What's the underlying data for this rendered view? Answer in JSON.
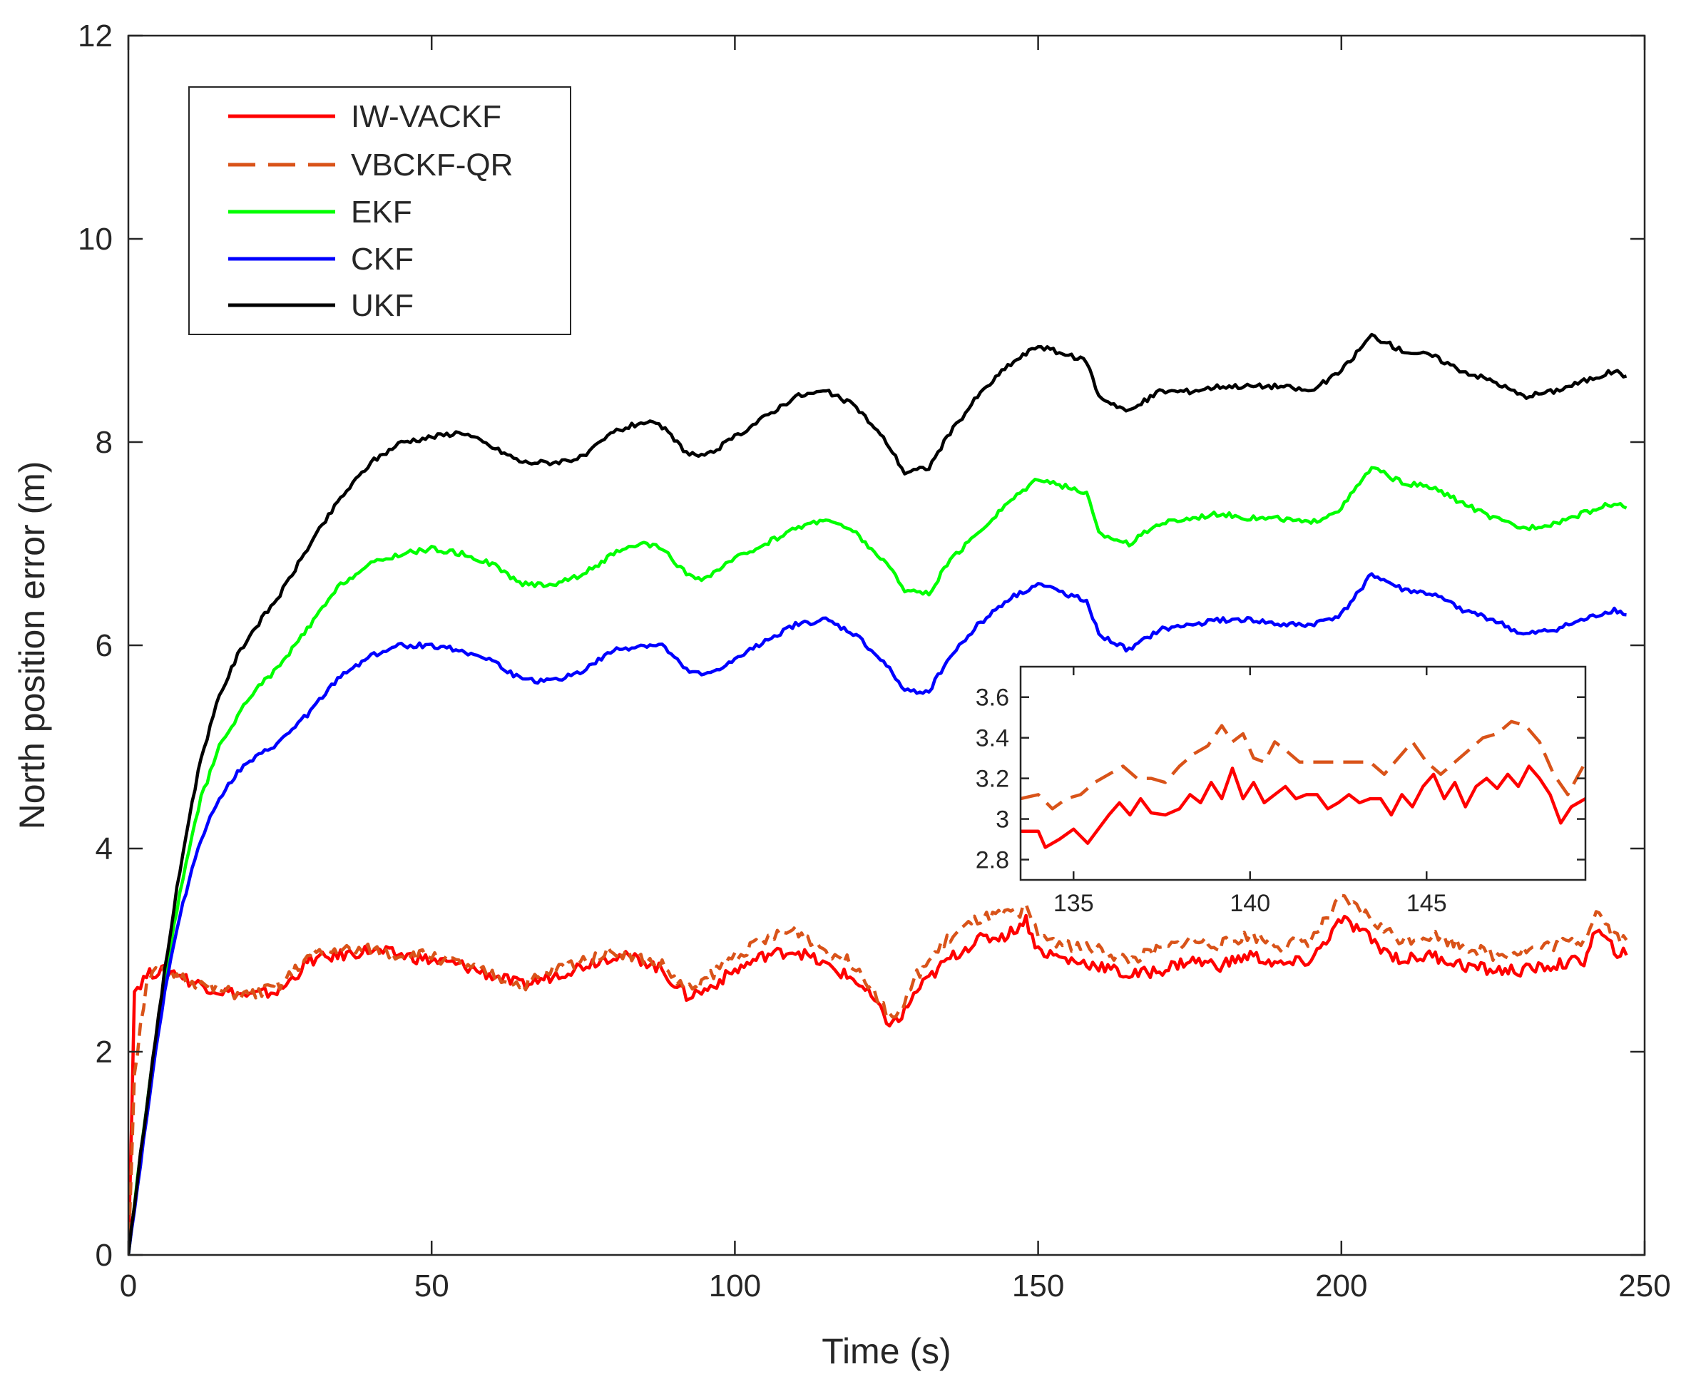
{
  "chart_data": [
    {
      "type": "line",
      "role": "main",
      "title": "",
      "xlabel": "Time (s)",
      "ylabel": "North position error (m)",
      "xlim": [
        0,
        250
      ],
      "ylim": [
        0,
        12
      ],
      "xticks": [
        0,
        50,
        100,
        150,
        200,
        250
      ],
      "yticks": [
        0,
        2,
        4,
        6,
        8,
        10,
        12
      ],
      "xtick_labels": [
        "0",
        "50",
        "100",
        "150",
        "200",
        "250"
      ],
      "ytick_labels": [
        "0",
        "2",
        "4",
        "6",
        "8",
        "10",
        "12"
      ],
      "grid": false,
      "legend_position": "top-left",
      "series": [
        {
          "name": "IW-VACKF",
          "color": "#ff0000",
          "style": "solid",
          "x": [
            0,
            1,
            3,
            5,
            8,
            10,
            15,
            20,
            25,
            30,
            35,
            40,
            45,
            50,
            55,
            60,
            65,
            70,
            75,
            80,
            85,
            88,
            92,
            95,
            100,
            105,
            110,
            115,
            120,
            123,
            125,
            127,
            130,
            135,
            140,
            145,
            148,
            150,
            155,
            160,
            165,
            170,
            175,
            180,
            185,
            190,
            195,
            200,
            203,
            207,
            210,
            215,
            220,
            225,
            230,
            235,
            240,
            242,
            245,
            247
          ],
          "y": [
            0,
            2.6,
            2.75,
            2.8,
            2.78,
            2.7,
            2.6,
            2.55,
            2.6,
            2.9,
            2.95,
            3.0,
            2.95,
            2.9,
            2.85,
            2.75,
            2.65,
            2.75,
            2.85,
            2.95,
            2.9,
            2.8,
            2.55,
            2.6,
            2.8,
            2.95,
            3.0,
            2.85,
            2.7,
            2.5,
            2.3,
            2.3,
            2.6,
            2.9,
            3.1,
            3.15,
            3.3,
            3.0,
            2.9,
            2.85,
            2.75,
            2.8,
            2.9,
            2.85,
            2.95,
            2.85,
            2.9,
            3.3,
            3.2,
            3.0,
            2.9,
            2.95,
            2.85,
            2.8,
            2.8,
            2.85,
            2.9,
            3.2,
            3.0,
            2.95
          ]
        },
        {
          "name": "VBCKF-QR",
          "color": "#d95319",
          "style": "dashed",
          "x": [
            0,
            1,
            3,
            5,
            8,
            10,
            15,
            20,
            25,
            30,
            35,
            40,
            45,
            50,
            55,
            60,
            65,
            70,
            75,
            80,
            85,
            88,
            92,
            95,
            100,
            105,
            110,
            115,
            120,
            123,
            125,
            127,
            130,
            135,
            140,
            145,
            148,
            150,
            155,
            160,
            165,
            170,
            175,
            180,
            185,
            190,
            195,
            200,
            203,
            207,
            210,
            215,
            220,
            225,
            230,
            235,
            240,
            242,
            245,
            247
          ],
          "y": [
            0,
            1.8,
            2.7,
            2.8,
            2.75,
            2.7,
            2.6,
            2.55,
            2.65,
            2.95,
            3.0,
            3.0,
            2.95,
            2.95,
            2.85,
            2.75,
            2.65,
            2.8,
            2.9,
            3.0,
            2.9,
            2.85,
            2.6,
            2.7,
            2.95,
            3.1,
            3.2,
            3.0,
            2.85,
            2.6,
            2.4,
            2.35,
            2.75,
            3.1,
            3.3,
            3.35,
            3.4,
            3.15,
            3.05,
            3.0,
            2.9,
            3.0,
            3.1,
            3.05,
            3.15,
            3.05,
            3.1,
            3.5,
            3.4,
            3.2,
            3.1,
            3.15,
            3.05,
            2.95,
            3.0,
            3.05,
            3.1,
            3.4,
            3.15,
            3.1
          ]
        },
        {
          "name": "EKF",
          "color": "#00ff00",
          "style": "solid",
          "x": [
            0,
            2,
            4,
            6,
            8,
            10,
            12,
            15,
            18,
            20,
            25,
            30,
            35,
            40,
            45,
            50,
            55,
            60,
            65,
            70,
            75,
            80,
            85,
            88,
            92,
            95,
            100,
            105,
            110,
            115,
            120,
            125,
            128,
            132,
            135,
            140,
            145,
            150,
            155,
            158,
            160,
            165,
            170,
            175,
            180,
            185,
            190,
            195,
            200,
            205,
            210,
            215,
            220,
            225,
            230,
            235,
            240,
            245,
            247
          ],
          "y": [
            0,
            1.0,
            1.9,
            2.7,
            3.4,
            4.0,
            4.5,
            5.0,
            5.3,
            5.5,
            5.8,
            6.2,
            6.6,
            6.8,
            6.9,
            6.95,
            6.9,
            6.8,
            6.6,
            6.6,
            6.7,
            6.9,
            7.0,
            6.95,
            6.7,
            6.65,
            6.85,
            7.0,
            7.15,
            7.25,
            7.1,
            6.8,
            6.55,
            6.5,
            6.8,
            7.1,
            7.4,
            7.65,
            7.55,
            7.5,
            7.1,
            7.0,
            7.2,
            7.25,
            7.3,
            7.25,
            7.25,
            7.2,
            7.35,
            7.75,
            7.6,
            7.55,
            7.4,
            7.25,
            7.15,
            7.2,
            7.3,
            7.4,
            7.35
          ]
        },
        {
          "name": "CKF",
          "color": "#0000ff",
          "style": "solid",
          "x": [
            0,
            2,
            4,
            6,
            8,
            10,
            12,
            15,
            18,
            20,
            25,
            30,
            35,
            40,
            45,
            50,
            55,
            60,
            65,
            70,
            75,
            80,
            85,
            88,
            92,
            95,
            100,
            105,
            110,
            115,
            120,
            125,
            128,
            132,
            135,
            140,
            145,
            150,
            155,
            158,
            160,
            165,
            170,
            175,
            180,
            185,
            190,
            195,
            200,
            205,
            210,
            215,
            220,
            225,
            230,
            235,
            240,
            245,
            247
          ],
          "y": [
            0,
            0.9,
            1.8,
            2.6,
            3.2,
            3.7,
            4.1,
            4.5,
            4.75,
            4.85,
            5.05,
            5.35,
            5.7,
            5.9,
            6.0,
            6.0,
            5.95,
            5.85,
            5.65,
            5.65,
            5.75,
            5.95,
            6.0,
            6.0,
            5.75,
            5.7,
            5.85,
            6.05,
            6.2,
            6.25,
            6.1,
            5.8,
            5.55,
            5.55,
            5.85,
            6.2,
            6.45,
            6.6,
            6.5,
            6.45,
            6.1,
            5.95,
            6.15,
            6.2,
            6.25,
            6.25,
            6.2,
            6.2,
            6.3,
            6.7,
            6.55,
            6.5,
            6.35,
            6.25,
            6.1,
            6.15,
            6.25,
            6.35,
            6.3
          ]
        },
        {
          "name": "UKF",
          "color": "#000000",
          "style": "solid",
          "x": [
            0,
            2,
            4,
            6,
            8,
            10,
            12,
            15,
            18,
            20,
            25,
            30,
            35,
            40,
            45,
            50,
            55,
            60,
            65,
            70,
            75,
            80,
            85,
            88,
            92,
            95,
            100,
            105,
            110,
            115,
            120,
            125,
            128,
            132,
            135,
            140,
            145,
            150,
            155,
            158,
            160,
            165,
            170,
            175,
            180,
            185,
            190,
            195,
            200,
            205,
            210,
            215,
            220,
            225,
            230,
            235,
            240,
            245,
            247
          ],
          "y": [
            0,
            1.0,
            1.9,
            2.8,
            3.6,
            4.3,
            4.9,
            5.5,
            5.9,
            6.1,
            6.5,
            7.0,
            7.45,
            7.8,
            8.0,
            8.05,
            8.1,
            7.95,
            7.8,
            7.8,
            7.85,
            8.1,
            8.2,
            8.15,
            7.9,
            7.85,
            8.05,
            8.25,
            8.45,
            8.5,
            8.35,
            8.0,
            7.7,
            7.75,
            8.05,
            8.45,
            8.75,
            8.95,
            8.85,
            8.8,
            8.45,
            8.3,
            8.5,
            8.5,
            8.55,
            8.55,
            8.55,
            8.5,
            8.7,
            9.05,
            8.9,
            8.85,
            8.7,
            8.6,
            8.45,
            8.5,
            8.6,
            8.7,
            8.65
          ]
        }
      ]
    },
    {
      "type": "line",
      "role": "inset",
      "title": "",
      "xlim": [
        133.5,
        149.5
      ],
      "ylim": [
        2.7,
        3.75
      ],
      "xticks": [
        135,
        140,
        145
      ],
      "yticks": [
        2.8,
        3,
        3.2,
        3.4,
        3.6
      ],
      "xtick_labels": [
        "135",
        "140",
        "145"
      ],
      "ytick_labels": [
        "2.8",
        "3",
        "3.2",
        "3.4",
        "3.6"
      ],
      "grid": false,
      "series": [
        {
          "name": "IW-VACKF",
          "color": "#ff0000",
          "style": "solid",
          "x": [
            133.5,
            134,
            134.2,
            134.6,
            135,
            135.4,
            135.7,
            136,
            136.3,
            136.6,
            136.9,
            137.2,
            137.6,
            138,
            138.3,
            138.6,
            138.9,
            139.2,
            139.5,
            139.8,
            140.1,
            140.4,
            140.7,
            141,
            141.3,
            141.6,
            141.9,
            142.2,
            142.5,
            142.8,
            143.1,
            143.4,
            143.7,
            144,
            144.3,
            144.6,
            144.9,
            145.2,
            145.5,
            145.8,
            146.1,
            146.4,
            146.7,
            147,
            147.3,
            147.6,
            147.9,
            148.2,
            148.5,
            148.8,
            149.1,
            149.5
          ],
          "y": [
            2.94,
            2.94,
            2.86,
            2.9,
            2.95,
            2.88,
            2.95,
            3.02,
            3.08,
            3.02,
            3.1,
            3.03,
            3.02,
            3.05,
            3.12,
            3.08,
            3.18,
            3.1,
            3.25,
            3.1,
            3.18,
            3.08,
            3.12,
            3.16,
            3.1,
            3.12,
            3.12,
            3.05,
            3.08,
            3.12,
            3.08,
            3.1,
            3.1,
            3.02,
            3.12,
            3.06,
            3.16,
            3.22,
            3.1,
            3.18,
            3.06,
            3.16,
            3.2,
            3.15,
            3.22,
            3.16,
            3.26,
            3.2,
            3.12,
            2.98,
            3.06,
            3.1
          ]
        },
        {
          "name": "VBCKF-QR",
          "color": "#d95319",
          "style": "dashed",
          "x": [
            133.5,
            134,
            134.4,
            134.8,
            135.2,
            135.6,
            136,
            136.4,
            136.8,
            137.2,
            137.6,
            138,
            138.4,
            138.8,
            139.2,
            139.5,
            139.8,
            140.1,
            140.4,
            140.7,
            141,
            141.4,
            141.8,
            142.2,
            142.6,
            143,
            143.4,
            143.8,
            144.2,
            144.6,
            145,
            145.4,
            145.8,
            146.2,
            146.6,
            147,
            147.4,
            147.8,
            148.2,
            148.6,
            149,
            149.5
          ],
          "y": [
            3.1,
            3.12,
            3.05,
            3.1,
            3.12,
            3.18,
            3.22,
            3.26,
            3.2,
            3.2,
            3.18,
            3.26,
            3.32,
            3.36,
            3.46,
            3.38,
            3.42,
            3.3,
            3.28,
            3.38,
            3.34,
            3.28,
            3.28,
            3.28,
            3.28,
            3.28,
            3.28,
            3.22,
            3.3,
            3.38,
            3.28,
            3.22,
            3.28,
            3.34,
            3.4,
            3.42,
            3.48,
            3.46,
            3.38,
            3.22,
            3.12,
            3.28
          ]
        }
      ]
    }
  ]
}
